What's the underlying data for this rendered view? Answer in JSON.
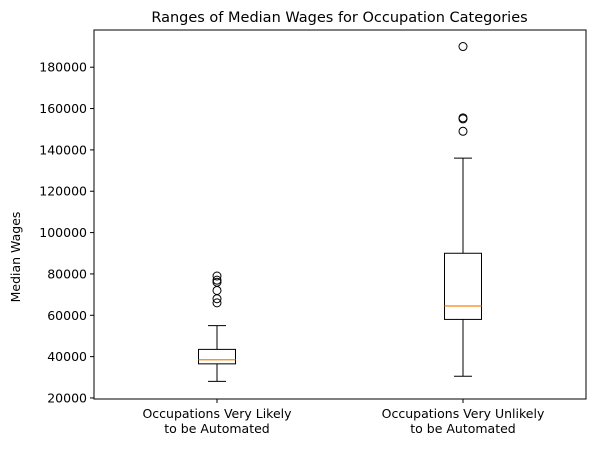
{
  "chart_data": {
    "type": "boxplot",
    "title": "Ranges of Median Wages for Occupation Categories",
    "xlabel": "",
    "ylabel": "Median Wages",
    "ylim": [
      19500,
      198000
    ],
    "yticks": [
      20000,
      40000,
      60000,
      80000,
      100000,
      120000,
      140000,
      160000,
      180000
    ],
    "ytick_labels": [
      "20000",
      "40000",
      "60000",
      "80000",
      "100000",
      "120000",
      "140000",
      "160000",
      "180000"
    ],
    "grid": false,
    "legend": "none",
    "median_color": "#ff7f0e",
    "box_color": "#000000",
    "categories": [
      {
        "label_lines": [
          "Occupations Very Likely",
          "to be Automated"
        ],
        "whisker_low": 28000,
        "q1": 36500,
        "median": 38500,
        "q3": 43500,
        "whisker_high": 55000,
        "outliers": [
          66000,
          68000,
          72000,
          76000,
          77000,
          79000
        ]
      },
      {
        "label_lines": [
          "Occupations Very Unlikely",
          "to be Automated"
        ],
        "whisker_low": 30500,
        "q1": 58000,
        "median": 64500,
        "q3": 90000,
        "whisker_high": 136000,
        "outliers": [
          149000,
          155000,
          155500,
          190000
        ]
      }
    ]
  }
}
